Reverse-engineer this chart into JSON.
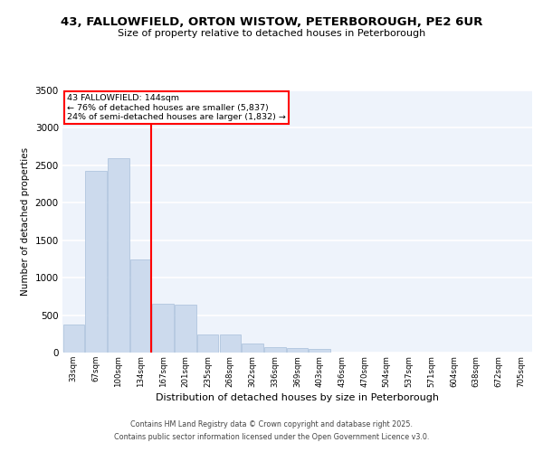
{
  "title_line1": "43, FALLOWFIELD, ORTON WISTOW, PETERBOROUGH, PE2 6UR",
  "title_line2": "Size of property relative to detached houses in Peterborough",
  "xlabel": "Distribution of detached houses by size in Peterborough",
  "ylabel": "Number of detached properties",
  "categories": [
    "33sqm",
    "67sqm",
    "100sqm",
    "134sqm",
    "167sqm",
    "201sqm",
    "235sqm",
    "268sqm",
    "302sqm",
    "336sqm",
    "369sqm",
    "403sqm",
    "436sqm",
    "470sqm",
    "504sqm",
    "537sqm",
    "571sqm",
    "604sqm",
    "638sqm",
    "672sqm",
    "705sqm"
  ],
  "values": [
    380,
    2420,
    2600,
    1240,
    650,
    640,
    245,
    245,
    120,
    70,
    55,
    50,
    0,
    0,
    0,
    0,
    0,
    0,
    0,
    0,
    0
  ],
  "bar_color": "#ccdaed",
  "bar_edge_color": "#a8bfda",
  "red_line_bin_index": 3,
  "annotation_title": "43 FALLOWFIELD: 144sqm",
  "annotation_line1": "← 76% of detached houses are smaller (5,837)",
  "annotation_line2": "24% of semi-detached houses are larger (1,832) →",
  "ylim": [
    0,
    3500
  ],
  "yticks": [
    0,
    500,
    1000,
    1500,
    2000,
    2500,
    3000,
    3500
  ],
  "background_color": "#eef3fb",
  "grid_color": "#ffffff",
  "footer_line1": "Contains HM Land Registry data © Crown copyright and database right 2025.",
  "footer_line2": "Contains public sector information licensed under the Open Government Licence v3.0."
}
